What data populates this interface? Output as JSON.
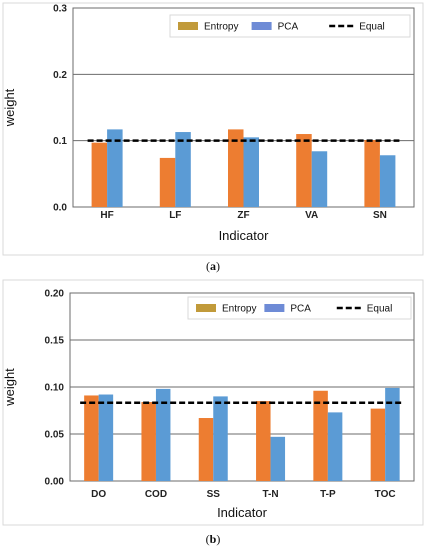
{
  "chart_data": [
    {
      "type": "bar",
      "caption_prefix": "(",
      "caption_letter": "a",
      "caption_suffix": ")",
      "xlabel": "Indicator",
      "ylabel": "weight",
      "categories": [
        "HF",
        "LF",
        "ZF",
        "VA",
        "SN"
      ],
      "ylim": [
        0,
        0.3
      ],
      "yticks": [
        "0.0",
        "0.1",
        "0.2",
        "0.3"
      ],
      "ytick_values": [
        0,
        0.1,
        0.2,
        0.3
      ],
      "grid": true,
      "legend_position": "top-right",
      "series": [
        {
          "name": "Entropy",
          "values": [
            0.097,
            0.074,
            0.117,
            0.11,
            0.101
          ],
          "color": "#ed7d31",
          "legend_color": "#c19a3a"
        },
        {
          "name": "PCA",
          "values": [
            0.117,
            0.113,
            0.105,
            0.084,
            0.078
          ],
          "color": "#5b9bd5",
          "legend_color": "#6e8bd6"
        }
      ],
      "reference_line": {
        "name": "Equal",
        "value": 0.1,
        "color": "#000000"
      }
    },
    {
      "type": "bar",
      "caption_prefix": "(",
      "caption_letter": "b",
      "caption_suffix": ")",
      "xlabel": "Indicator",
      "ylabel": "weight",
      "categories": [
        "DO",
        "COD",
        "SS",
        "T-N",
        "T-P",
        "TOC"
      ],
      "ylim": [
        0,
        0.2
      ],
      "yticks": [
        "0.00",
        "0.05",
        "0.10",
        "0.15",
        "0.20"
      ],
      "ytick_values": [
        0,
        0.05,
        0.1,
        0.15,
        0.2
      ],
      "grid": true,
      "legend_position": "top-right",
      "series": [
        {
          "name": "Entropy",
          "values": [
            0.091,
            0.084,
            0.067,
            0.085,
            0.096,
            0.077
          ],
          "color": "#ed7d31",
          "legend_color": "#c19a3a"
        },
        {
          "name": "PCA",
          "values": [
            0.092,
            0.098,
            0.09,
            0.047,
            0.073,
            0.099
          ],
          "color": "#5b9bd5",
          "legend_color": "#6e8bd6"
        }
      ],
      "reference_line": {
        "name": "Equal",
        "value": 0.0833,
        "color": "#000000"
      }
    }
  ]
}
